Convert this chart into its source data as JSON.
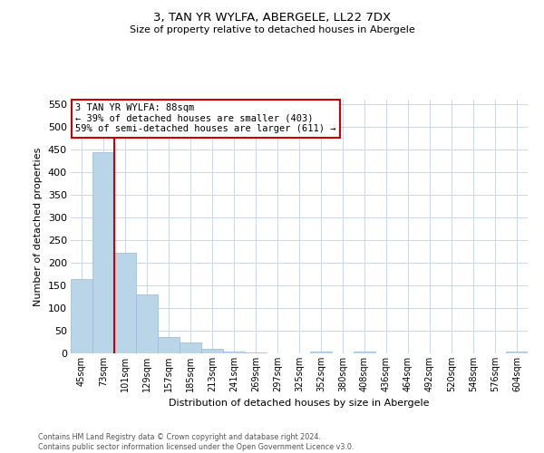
{
  "title": "3, TAN YR WYLFA, ABERGELE, LL22 7DX",
  "subtitle": "Size of property relative to detached houses in Abergele",
  "xlabel": "Distribution of detached houses by size in Abergele",
  "ylabel": "Number of detached properties",
  "footer_line1": "Contains HM Land Registry data © Crown copyright and database right 2024.",
  "footer_line2": "Contains public sector information licensed under the Open Government Licence v3.0.",
  "categories": [
    "45sqm",
    "73sqm",
    "101sqm",
    "129sqm",
    "157sqm",
    "185sqm",
    "213sqm",
    "241sqm",
    "269sqm",
    "297sqm",
    "325sqm",
    "352sqm",
    "380sqm",
    "408sqm",
    "436sqm",
    "464sqm",
    "492sqm",
    "520sqm",
    "548sqm",
    "576sqm",
    "604sqm"
  ],
  "values": [
    165,
    445,
    222,
    130,
    37,
    25,
    10,
    5,
    2,
    0,
    0,
    5,
    0,
    5,
    0,
    0,
    0,
    0,
    0,
    0,
    5
  ],
  "bar_color": "#bad4e8",
  "bar_edge_color": "#9ab8d4",
  "grid_color": "#ccd8e8",
  "annotation_title": "3 TAN YR WYLFA: 88sqm",
  "annotation_line2": "← 39% of detached houses are smaller (403)",
  "annotation_line3": "59% of semi-detached houses are larger (611) →",
  "annotation_box_color": "#cc0000",
  "ylim": [
    0,
    560
  ],
  "yticks": [
    0,
    50,
    100,
    150,
    200,
    250,
    300,
    350,
    400,
    450,
    500,
    550
  ],
  "vline_color": "#cc0000",
  "bg_color": "#ffffff",
  "plot_bg_color": "#ffffff"
}
